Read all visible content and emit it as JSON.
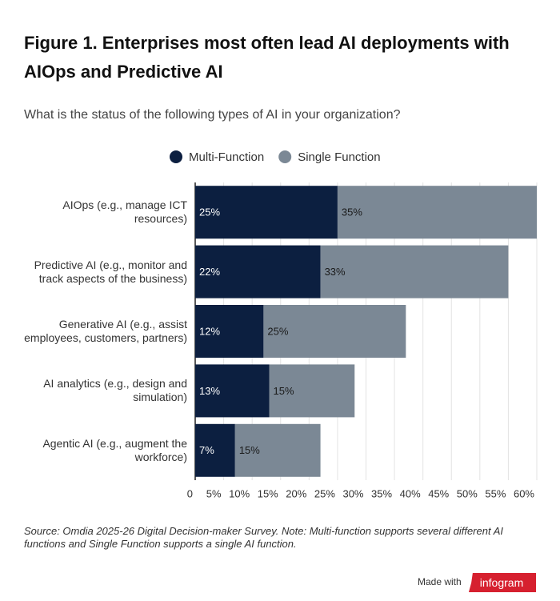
{
  "chart_data": {
    "type": "stacked-bar-horizontal",
    "title": "Figure 1. Enterprises most often lead AI deployments with AIOps and Predictive AI",
    "subtitle": "What is the status of the following types of AI in your organization?",
    "categories": [
      "AIOps (e.g., manage ICT resources)",
      "Predictive AI (e.g., monitor and track aspects of the business)",
      "Generative AI (e.g., assist employees, customers, partners)",
      "AI analytics (e.g., design and simulation)",
      "Agentic AI (e.g., augment the workforce)"
    ],
    "series": [
      {
        "name": "Multi-Function",
        "color": "#0c1f40",
        "label_color": "#ffffff",
        "values": [
          25,
          22,
          12,
          13,
          7
        ],
        "value_labels": [
          "25%",
          "22%",
          "12%",
          "13%",
          "7%"
        ]
      },
      {
        "name": "Single Function",
        "color": "#7b8895",
        "label_color": "#1a1a1a",
        "values": [
          35,
          33,
          25,
          15,
          15
        ],
        "value_labels": [
          "35%",
          "33%",
          "25%",
          "15%",
          "15%"
        ]
      }
    ],
    "xlim": [
      0,
      60
    ],
    "xticks": [
      0,
      {
        "value": 5,
        "label": "5%"
      },
      {
        "value": 10,
        "label": "10%"
      },
      {
        "value": 15,
        "label": "15%"
      },
      {
        "value": 20,
        "label": "20%"
      },
      {
        "value": 25,
        "label": "25%"
      },
      {
        "value": 30,
        "label": "30%"
      },
      {
        "value": 35,
        "label": "35%"
      },
      {
        "value": 40,
        "label": "40%"
      },
      {
        "value": 45,
        "label": "45%"
      },
      {
        "value": 50,
        "label": "50%"
      },
      {
        "value": 55,
        "label": "55%"
      },
      {
        "value": 60,
        "label": "60%"
      }
    ],
    "grid": true,
    "legend": "top",
    "note": "Source: Omdia 2025-26 Digital Decision-maker Survey. Note: Multi-function supports several different AI functions and Single Function supports a single AI function.",
    "footer_text": "Made with",
    "footer_brand": "infogram"
  }
}
